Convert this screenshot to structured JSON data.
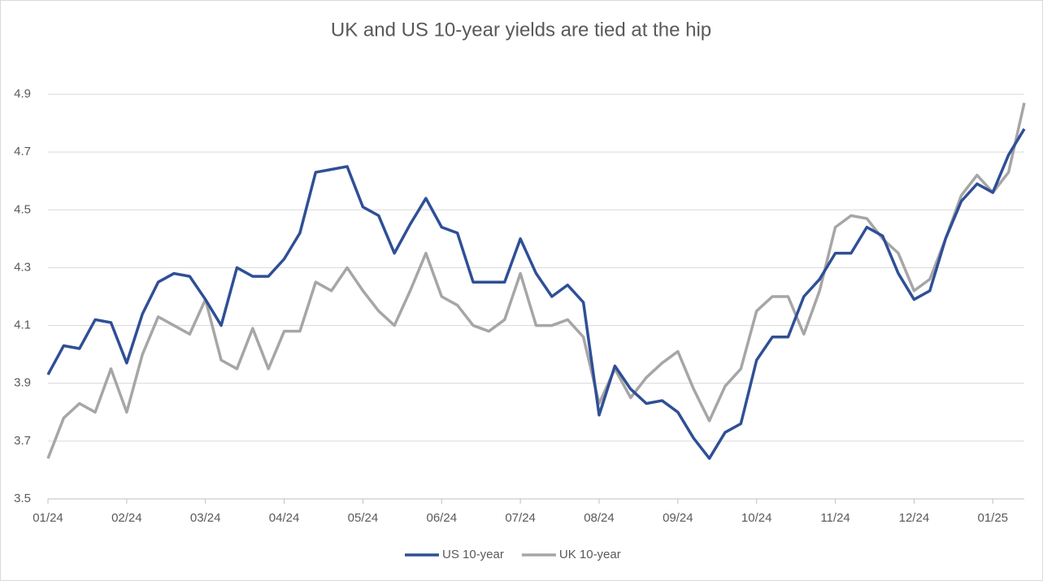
{
  "chart_data": {
    "type": "line",
    "title": "UK and US 10-year yields are tied at the hip",
    "categories": [
      "01/24",
      null,
      null,
      null,
      null,
      "02/24",
      null,
      null,
      null,
      null,
      "03/24",
      null,
      null,
      null,
      null,
      "04/24",
      null,
      null,
      null,
      null,
      "05/24",
      null,
      null,
      null,
      null,
      "06/24",
      null,
      null,
      null,
      null,
      "07/24",
      null,
      null,
      null,
      null,
      "08/24",
      null,
      null,
      null,
      null,
      "09/24",
      null,
      null,
      null,
      null,
      "10/24",
      null,
      null,
      null,
      null,
      "11/24",
      null,
      null,
      null,
      null,
      "12/24",
      null,
      null,
      null,
      null,
      "01/25",
      null,
      null
    ],
    "series": [
      {
        "name": "US 10-year",
        "color": "#2f4f96",
        "values": [
          3.93,
          4.03,
          4.02,
          4.12,
          4.11,
          3.97,
          4.14,
          4.25,
          4.28,
          4.27,
          4.19,
          4.1,
          4.3,
          4.27,
          4.27,
          4.33,
          4.42,
          4.63,
          4.64,
          4.65,
          4.51,
          4.48,
          4.35,
          4.45,
          4.54,
          4.44,
          4.42,
          4.25,
          4.25,
          4.25,
          4.4,
          4.28,
          4.2,
          4.24,
          4.18,
          3.79,
          3.96,
          3.88,
          3.83,
          3.84,
          3.8,
          3.71,
          3.64,
          3.73,
          3.76,
          3.98,
          4.06,
          4.06,
          4.2,
          4.26,
          4.35,
          4.35,
          4.44,
          4.41,
          4.28,
          4.19,
          4.22,
          4.4,
          4.53,
          4.59,
          4.56,
          4.69,
          4.78
        ]
      },
      {
        "name": "UK 10-year",
        "color": "#a6a6a6",
        "values": [
          3.64,
          3.78,
          3.83,
          3.8,
          3.95,
          3.8,
          4.0,
          4.13,
          4.1,
          4.07,
          4.19,
          3.98,
          3.95,
          4.09,
          3.95,
          4.08,
          4.08,
          4.25,
          4.22,
          4.3,
          4.22,
          4.15,
          4.1,
          4.22,
          4.35,
          4.2,
          4.17,
          4.1,
          4.08,
          4.12,
          4.28,
          4.1,
          4.1,
          4.12,
          4.06,
          3.83,
          3.95,
          3.85,
          3.92,
          3.97,
          4.01,
          3.88,
          3.77,
          3.89,
          3.95,
          4.15,
          4.2,
          4.2,
          4.07,
          4.22,
          4.44,
          4.48,
          4.47,
          4.4,
          4.35,
          4.22,
          4.26,
          4.4,
          4.55,
          4.62,
          4.56,
          4.63,
          4.87
        ]
      }
    ],
    "ylim": [
      3.5,
      4.9
    ],
    "yticks": [
      3.5,
      3.7,
      3.9,
      4.1,
      4.3,
      4.5,
      4.7,
      4.9
    ],
    "grid": true,
    "legend": "bottom"
  }
}
